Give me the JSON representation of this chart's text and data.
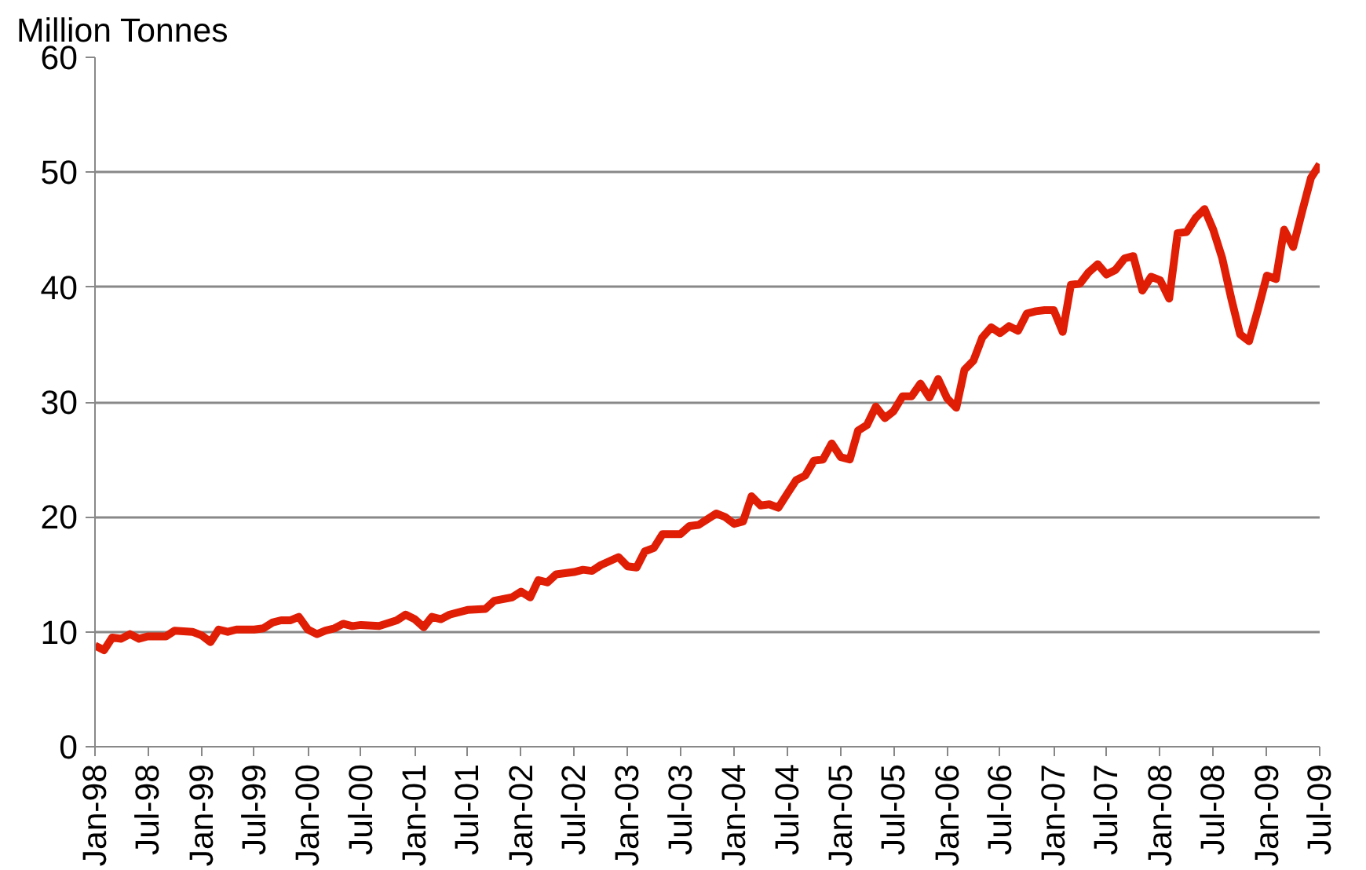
{
  "chart_data": {
    "type": "line",
    "ylabel": "Million Tonnes",
    "x": [
      "1998-01",
      "1998-02",
      "1998-03",
      "1998-04",
      "1998-05",
      "1998-06",
      "1998-07",
      "1998-09",
      "1998-10",
      "1998-12",
      "1999-01",
      "1999-02",
      "1999-03",
      "1999-04",
      "1999-05",
      "1999-07",
      "1999-08",
      "1999-09",
      "1999-10",
      "1999-11",
      "1999-12",
      "2000-01",
      "2000-02",
      "2000-03",
      "2000-04",
      "2000-05",
      "2000-06",
      "2000-07",
      "2000-09",
      "2000-11",
      "2000-12",
      "2001-01",
      "2001-02",
      "2001-03",
      "2001-04",
      "2001-05",
      "2001-07",
      "2001-09",
      "2001-10",
      "2001-12",
      "2002-01",
      "2002-02",
      "2002-03",
      "2002-04",
      "2002-05",
      "2002-07",
      "2002-08",
      "2002-09",
      "2002-10",
      "2002-12",
      "2003-01",
      "2003-02",
      "2003-03",
      "2003-04",
      "2003-05",
      "2003-07",
      "2003-08",
      "2003-09",
      "2003-11",
      "2003-12",
      "2004-01",
      "2004-02",
      "2004-03",
      "2004-04",
      "2004-05",
      "2004-06",
      "2004-07",
      "2004-08",
      "2004-09",
      "2004-10",
      "2004-11",
      "2004-12",
      "2005-01",
      "2005-02",
      "2005-03",
      "2005-04",
      "2005-05",
      "2005-06",
      "2005-07",
      "2005-08",
      "2005-09",
      "2005-10",
      "2005-11",
      "2005-12",
      "2006-01",
      "2006-02",
      "2006-03",
      "2006-04",
      "2006-05",
      "2006-06",
      "2006-07",
      "2006-08",
      "2006-09",
      "2006-10",
      "2006-11",
      "2006-12",
      "2007-01",
      "2007-02",
      "2007-03",
      "2007-04",
      "2007-05",
      "2007-06",
      "2007-07",
      "2007-08",
      "2007-09",
      "2007-10",
      "2007-11",
      "2007-12",
      "2008-01",
      "2008-02",
      "2008-03",
      "2008-04",
      "2008-05",
      "2008-06",
      "2008-07",
      "2008-08",
      "2008-09",
      "2008-10",
      "2008-11",
      "2008-12",
      "2009-01",
      "2009-02",
      "2009-03",
      "2009-04",
      "2009-05",
      "2009-06",
      "2009-07"
    ],
    "series": [
      {
        "color": "#e01e06",
        "values": [
          8.8,
          8.4,
          9.5,
          9.4,
          9.8,
          9.4,
          9.6,
          9.6,
          10.1,
          10.0,
          9.7,
          9.1,
          10.2,
          10.0,
          10.2,
          10.2,
          10.3,
          10.8,
          11.0,
          11.0,
          11.3,
          10.2,
          9.8,
          10.1,
          10.3,
          10.7,
          10.5,
          10.6,
          10.5,
          11.0,
          11.5,
          11.1,
          10.4,
          11.3,
          11.1,
          11.5,
          11.9,
          12.0,
          12.7,
          13.0,
          13.5,
          13.0,
          14.5,
          14.3,
          15.0,
          15.2,
          15.4,
          15.3,
          15.8,
          16.5,
          15.7,
          15.6,
          17.0,
          17.3,
          18.5,
          18.5,
          19.2,
          19.3,
          20.3,
          20.0,
          19.4,
          19.6,
          21.8,
          21.0,
          21.1,
          20.8,
          22.0,
          23.2,
          23.6,
          24.9,
          25.0,
          26.4,
          25.2,
          25.0,
          27.5,
          28.0,
          29.6,
          28.6,
          29.2,
          30.5,
          30.5,
          31.6,
          30.4,
          32.0,
          30.3,
          29.5,
          32.8,
          33.6,
          35.6,
          36.5,
          36.0,
          36.6,
          36.2,
          37.7,
          37.9,
          38.0,
          38.0,
          36.1,
          40.2,
          40.3,
          41.3,
          42.0,
          41.1,
          41.5,
          42.5,
          42.7,
          39.7,
          40.9,
          40.6,
          39.0,
          44.7,
          44.8,
          46.0,
          46.8,
          45.0,
          42.5,
          39.0,
          35.9,
          35.3,
          38.0,
          41.0,
          40.7,
          45.0,
          43.5,
          46.5,
          49.5,
          50.7
        ]
      }
    ],
    "ylim": [
      0,
      60
    ],
    "yticks": [
      0,
      10,
      20,
      30,
      40,
      50,
      60
    ],
    "xlim": [
      "1998-01",
      "2009-07"
    ],
    "xticks": [
      {
        "value": "1998-01",
        "label": "Jan-98"
      },
      {
        "value": "1998-07",
        "label": "Jul-98"
      },
      {
        "value": "1999-01",
        "label": "Jan-99"
      },
      {
        "value": "1999-07",
        "label": "Jul-99"
      },
      {
        "value": "2000-01",
        "label": "Jan-00"
      },
      {
        "value": "2000-07",
        "label": "Jul-00"
      },
      {
        "value": "2001-01",
        "label": "Jan-01"
      },
      {
        "value": "2001-07",
        "label": "Jul-01"
      },
      {
        "value": "2002-01",
        "label": "Jan-02"
      },
      {
        "value": "2002-07",
        "label": "Jul-02"
      },
      {
        "value": "2003-01",
        "label": "Jan-03"
      },
      {
        "value": "2003-07",
        "label": "Jul-03"
      },
      {
        "value": "2004-01",
        "label": "Jan-04"
      },
      {
        "value": "2004-07",
        "label": "Jul-04"
      },
      {
        "value": "2005-01",
        "label": "Jan-05"
      },
      {
        "value": "2005-07",
        "label": "Jul-05"
      },
      {
        "value": "2006-01",
        "label": "Jan-06"
      },
      {
        "value": "2006-07",
        "label": "Jul-06"
      },
      {
        "value": "2007-01",
        "label": "Jan-07"
      },
      {
        "value": "2007-07",
        "label": "Jul-07"
      },
      {
        "value": "2008-01",
        "label": "Jan-08"
      },
      {
        "value": "2008-07",
        "label": "Jul-08"
      },
      {
        "value": "2009-01",
        "label": "Jan-09"
      },
      {
        "value": "2009-07",
        "label": "Jul-09"
      }
    ],
    "grid": "y",
    "marker": "none",
    "line_style": "solid"
  }
}
